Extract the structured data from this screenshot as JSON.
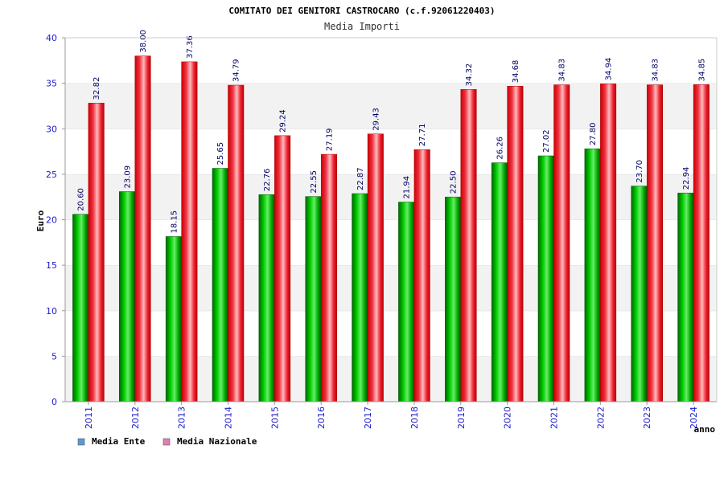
{
  "chart_data": {
    "type": "bar",
    "title": "COMITATO DEI GENITORI CASTROCARO (c.f.92061220403)",
    "subtitle": "Media Importi",
    "xlabel": "anno",
    "ylabel": "Euro",
    "ylim": [
      0,
      40
    ],
    "yticks": [
      "0",
      "5",
      "10",
      "15",
      "20",
      "25",
      "30",
      "35",
      "40"
    ],
    "categories": [
      "2011",
      "2012",
      "2013",
      "2014",
      "2015",
      "2016",
      "2017",
      "2018",
      "2019",
      "2020",
      "2021",
      "2022",
      "2023",
      "2024"
    ],
    "series": [
      {
        "name": "Media Ente",
        "color": "#00aa00",
        "values": [
          20.6,
          23.09,
          18.15,
          25.65,
          22.76,
          22.55,
          22.87,
          21.94,
          22.5,
          26.26,
          27.02,
          27.8,
          23.7,
          22.94
        ],
        "labels": [
          "20.60",
          "23.09",
          "18.15",
          "25.65",
          "22.76",
          "22.55",
          "22.87",
          "21.94",
          "22.50",
          "26.26",
          "27.02",
          "27.80",
          "23.70",
          "22.94"
        ]
      },
      {
        "name": "Media Nazionale",
        "color": "#ee1111",
        "values": [
          32.82,
          38.0,
          37.36,
          34.79,
          29.24,
          27.19,
          29.43,
          27.71,
          34.32,
          34.68,
          34.83,
          34.94,
          34.83,
          34.85
        ],
        "labels": [
          "32.82",
          "38.00",
          "37.36",
          "34.79",
          "29.24",
          "27.19",
          "29.43",
          "27.71",
          "34.32",
          "34.68",
          "34.83",
          "34.94",
          "34.83",
          "34.85"
        ]
      }
    ],
    "legend": [
      {
        "label": "Media Ente",
        "color": "#5b9bd5"
      },
      {
        "label": "Media Nazionale",
        "color": "#e07fb5"
      }
    ],
    "grid": true,
    "legend_position": "bottom-left"
  }
}
